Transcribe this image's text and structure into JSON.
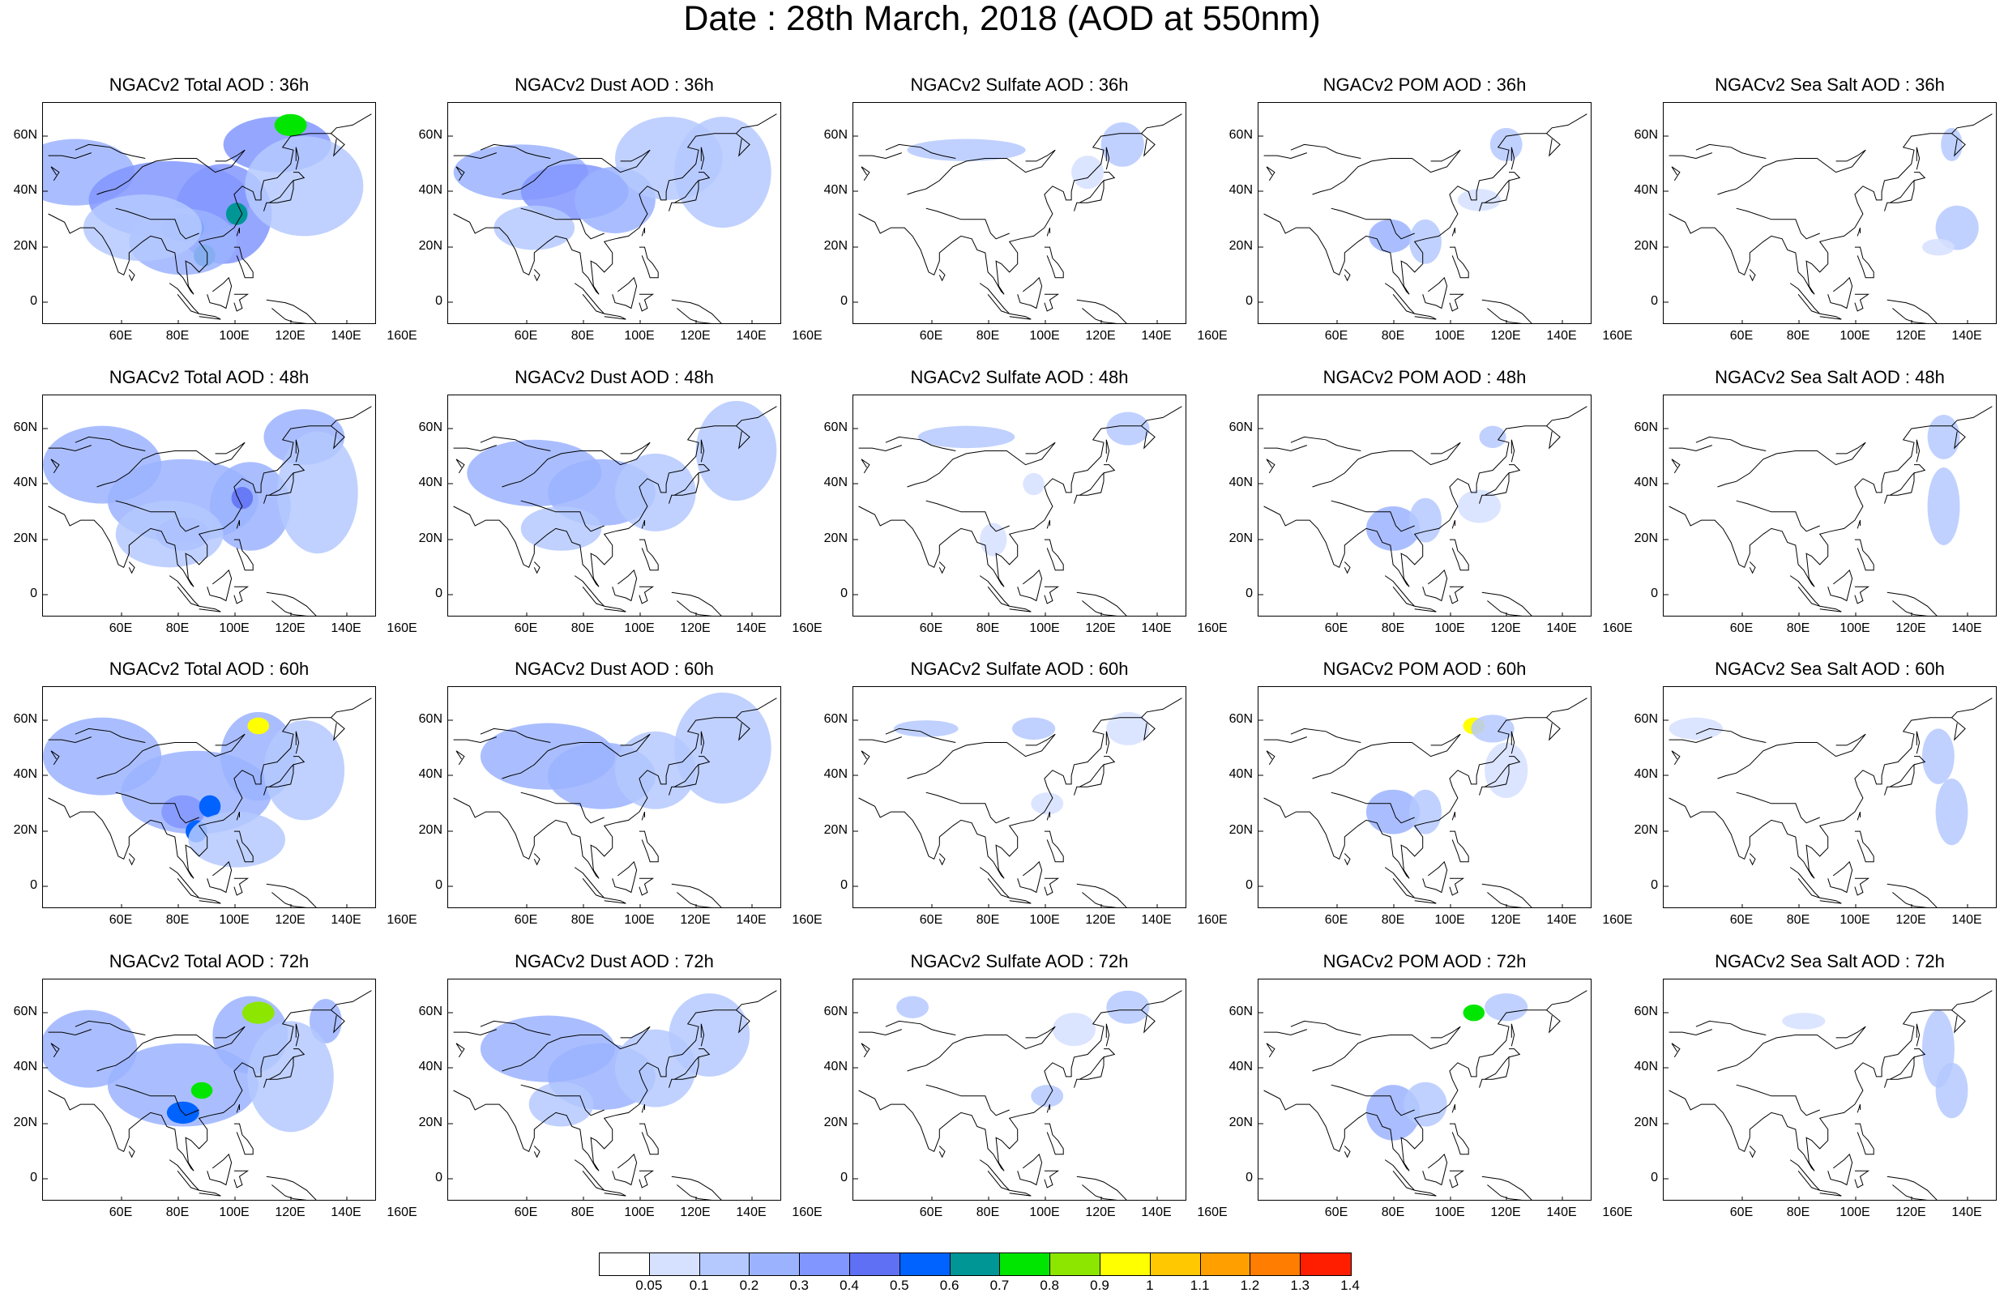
{
  "title": "Date : 28th March, 2018 (AOD at 550nm)",
  "panels": [
    {
      "title": "NGACv2 Total AOD : 36h",
      "species": "total",
      "hour": 36
    },
    {
      "title": "NGACv2 Dust AOD : 36h",
      "species": "dust",
      "hour": 36
    },
    {
      "title": "NGACv2 Sulfate AOD : 36h",
      "species": "sulfate",
      "hour": 36
    },
    {
      "title": "NGACv2 POM AOD : 36h",
      "species": "pom",
      "hour": 36
    },
    {
      "title": "NGACv2 Sea Salt AOD : 36h",
      "species": "seasalt",
      "hour": 36
    },
    {
      "title": "NGACv2 Total AOD : 48h",
      "species": "total",
      "hour": 48
    },
    {
      "title": "NGACv2 Dust AOD : 48h",
      "species": "dust",
      "hour": 48
    },
    {
      "title": "NGACv2 Sulfate AOD : 48h",
      "species": "sulfate",
      "hour": 48
    },
    {
      "title": "NGACv2 POM AOD : 48h",
      "species": "pom",
      "hour": 48
    },
    {
      "title": "NGACv2 Sea Salt AOD : 48h",
      "species": "seasalt",
      "hour": 48
    },
    {
      "title": "NGACv2 Total AOD : 60h",
      "species": "total",
      "hour": 60
    },
    {
      "title": "NGACv2 Dust AOD : 60h",
      "species": "dust",
      "hour": 60
    },
    {
      "title": "NGACv2 Sulfate AOD : 60h",
      "species": "sulfate",
      "hour": 60
    },
    {
      "title": "NGACv2 POM AOD : 60h",
      "species": "pom",
      "hour": 60
    },
    {
      "title": "NGACv2 Sea Salt AOD : 60h",
      "species": "seasalt",
      "hour": 60
    },
    {
      "title": "NGACv2 Total AOD : 72h",
      "species": "total",
      "hour": 72
    },
    {
      "title": "NGACv2 Dust AOD : 72h",
      "species": "dust",
      "hour": 72
    },
    {
      "title": "NGACv2 Sulfate AOD : 72h",
      "species": "sulfate",
      "hour": 72
    },
    {
      "title": "NGACv2 POM AOD : 72h",
      "species": "pom",
      "hour": 72
    },
    {
      "title": "NGACv2 Sea Salt  AOD : 72h",
      "species": "seasalt",
      "hour": 72
    }
  ],
  "map": {
    "lat_range": [
      -10,
      70
    ],
    "lon_range": [
      48,
      172
    ],
    "lat_ticks": [
      "60N",
      "40N",
      "20N",
      "0"
    ],
    "lon_ticks": [
      "60E",
      "80E",
      "100E",
      "120E",
      "140E",
      "160E"
    ]
  },
  "colorbar": {
    "colors": [
      "#ffffff",
      "#d6e1ff",
      "#b5c9ff",
      "#9bb3ff",
      "#8296ff",
      "#6070f4",
      "#0063ff",
      "#009696",
      "#00e600",
      "#8ce600",
      "#ffff00",
      "#ffc800",
      "#ffa000",
      "#ff7d00",
      "#ff1e00"
    ],
    "labels": [
      "0.05",
      "0.1",
      "0.2",
      "0.3",
      "0.4",
      "0.5",
      "0.6",
      "0.7",
      "0.8",
      "0.9",
      "1",
      "1.1",
      "1.2",
      "1.3",
      "1.4"
    ]
  }
}
